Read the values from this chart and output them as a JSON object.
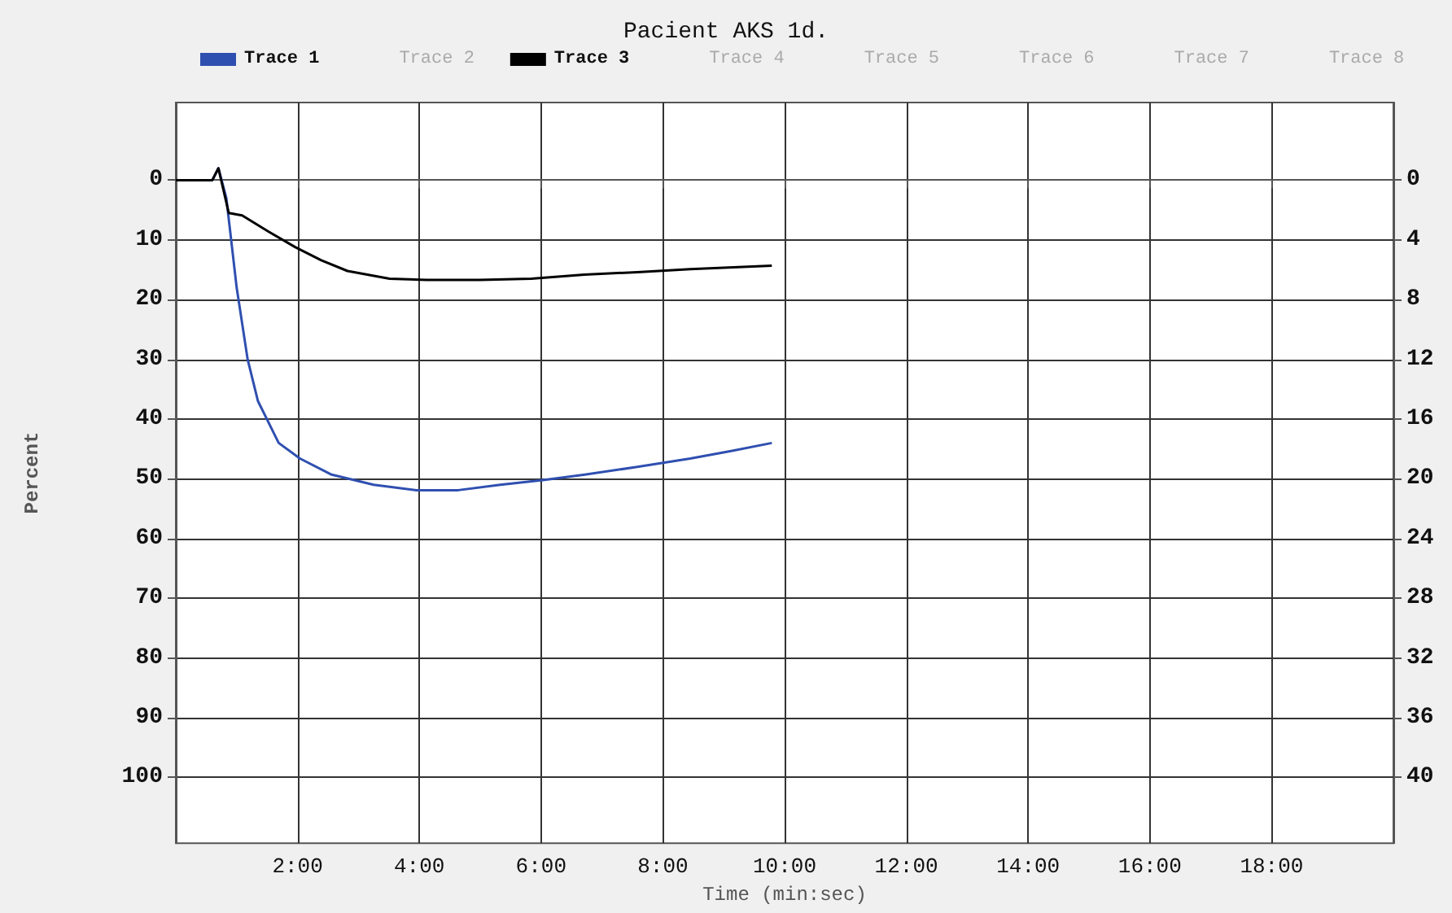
{
  "chart_data": {
    "type": "line",
    "title": "Pacient AKS 1d.",
    "xlabel": "Time (min:sec)",
    "ylabel": "Percent",
    "xlim": [
      0,
      20
    ],
    "xticks": [
      {
        "value": 2,
        "label": "2:00"
      },
      {
        "value": 4,
        "label": "4:00"
      },
      {
        "value": 6,
        "label": "6:00"
      },
      {
        "value": 8,
        "label": "8:00"
      },
      {
        "value": 10,
        "label": "10:00"
      },
      {
        "value": 12,
        "label": "12:00"
      },
      {
        "value": 14,
        "label": "14:00"
      },
      {
        "value": 16,
        "label": "16:00"
      },
      {
        "value": 18,
        "label": "18:00"
      }
    ],
    "ylim": [
      111,
      -13
    ],
    "yticks": [
      0,
      10,
      20,
      30,
      40,
      50,
      60,
      70,
      80,
      90,
      100
    ],
    "y2lim": [
      44.4,
      -5.2
    ],
    "y2ticks": [
      0,
      4,
      8,
      12,
      16,
      20,
      24,
      28,
      32,
      36,
      40
    ],
    "grid": true,
    "legend": "top",
    "marker": "none",
    "line_style": "solid",
    "series": [
      {
        "name": "Trace 1",
        "color": "#2f4fb0",
        "x": [
          0,
          0.6,
          0.7,
          0.83,
          1.0,
          1.18,
          1.35,
          1.69,
          2.04,
          2.56,
          3.25,
          3.95,
          4.64,
          5.33,
          6.03,
          6.72,
          7.58,
          8.45,
          9.14,
          9.79
        ],
        "values": [
          0,
          0,
          -2,
          3,
          18,
          30,
          37,
          44,
          46.6,
          49.3,
          51,
          51.9,
          51.9,
          51,
          50.2,
          49.3,
          48,
          46.6,
          45.3,
          44
        ]
      },
      {
        "name": "Trace 2"
      },
      {
        "name": "Trace 3",
        "color": "#000000",
        "x": [
          0,
          0.6,
          0.7,
          0.87,
          1.09,
          1.52,
          1.96,
          2.39,
          2.82,
          3.51,
          4.12,
          4.99,
          5.84,
          6.71,
          7.58,
          8.45,
          9.79
        ],
        "values": [
          0,
          0,
          -2,
          5.5,
          5.9,
          8.6,
          11.2,
          13.4,
          15.2,
          16.5,
          16.7,
          16.7,
          16.5,
          15.8,
          15.4,
          14.9,
          14.3
        ]
      },
      {
        "name": "Trace 4"
      },
      {
        "name": "Trace 5"
      },
      {
        "name": "Trace 6"
      },
      {
        "name": "Trace 7"
      },
      {
        "name": "Trace 8"
      }
    ]
  }
}
